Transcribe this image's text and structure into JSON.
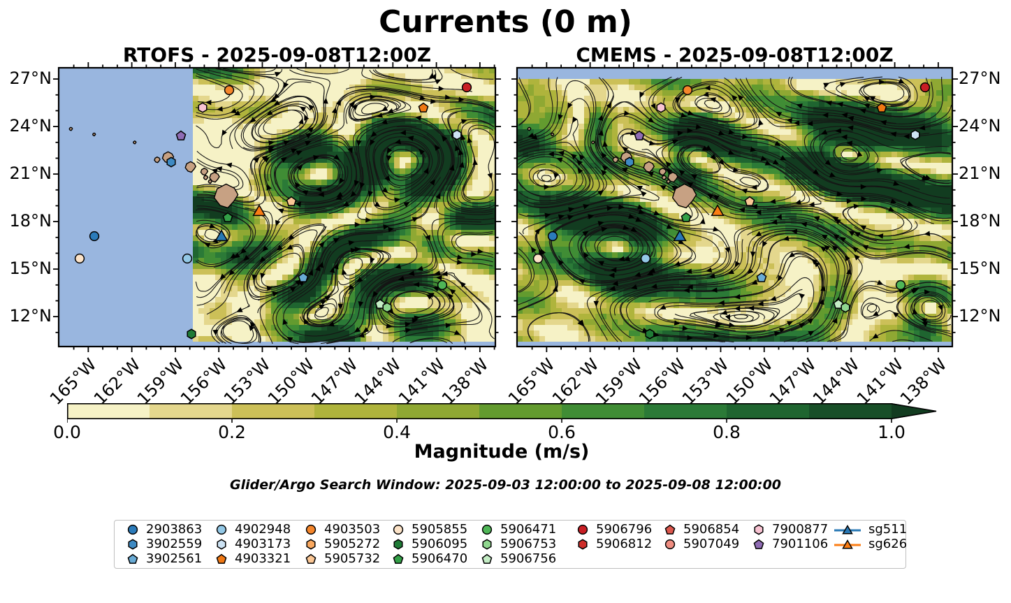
{
  "title": "Currents (0 m)",
  "panels": [
    {
      "title": "RTOFS - 2025-09-08T12:00Z"
    },
    {
      "title": "CMEMS - 2025-09-08T12:00Z"
    }
  ],
  "axes": {
    "lat_ticks": [
      "27°N",
      "24°N",
      "21°N",
      "18°N",
      "15°N",
      "12°N"
    ],
    "lon_ticks": [
      "165°W",
      "162°W",
      "159°W",
      "156°W",
      "153°W",
      "150°W",
      "147°W",
      "144°W",
      "141°W",
      "138°W"
    ]
  },
  "colorbar": {
    "label": "Magnitude (m/s)",
    "ticks": [
      "0.0",
      "0.2",
      "0.4",
      "0.6",
      "0.8",
      "1.0"
    ],
    "colors": [
      "#F6F2C6",
      "#E4D78D",
      "#CCC058",
      "#AFB43C",
      "#8FA833",
      "#639B2F",
      "#408D35",
      "#2B7A37",
      "#1F6530",
      "#184F28",
      "#123C20"
    ]
  },
  "subtitle": "Glider/Argo Search Window: 2025-09-03 12:00:00 to 2025-09-08 12:00:00",
  "ocean_color": "#99B6DF",
  "land_color": "#C7A183",
  "legend": {
    "columns": [
      [
        {
          "id": "2903863",
          "shape": "circle",
          "color": "#2B7BBA"
        },
        {
          "id": "3902559",
          "shape": "hexagon",
          "color": "#3E8AC3"
        },
        {
          "id": "3902561",
          "shape": "pentagon",
          "color": "#69ABD5"
        }
      ],
      [
        {
          "id": "4902948",
          "shape": "circle",
          "color": "#93C8E6"
        },
        {
          "id": "4903173",
          "shape": "hexagon",
          "color": "#CDE3F4"
        },
        {
          "id": "4903321",
          "shape": "pentagon",
          "color": "#F07813"
        }
      ],
      [
        {
          "id": "4903503",
          "shape": "circle",
          "color": "#F5862B"
        },
        {
          "id": "5905272",
          "shape": "hexagon",
          "color": "#F9A85F"
        },
        {
          "id": "5905732",
          "shape": "pentagon",
          "color": "#FBC795"
        }
      ],
      [
        {
          "id": "5905855",
          "shape": "circle",
          "color": "#FCE3C8"
        },
        {
          "id": "5906095",
          "shape": "hexagon",
          "color": "#1F7B36"
        },
        {
          "id": "5906470",
          "shape": "pentagon",
          "color": "#33A047"
        }
      ],
      [
        {
          "id": "5906471",
          "shape": "circle",
          "color": "#4FB657"
        },
        {
          "id": "5906753",
          "shape": "hexagon",
          "color": "#90D78F"
        },
        {
          "id": "5906756",
          "shape": "pentagon",
          "color": "#C4EDC5"
        }
      ],
      [
        {
          "id": "5906796",
          "shape": "circle",
          "color": "#C81E24"
        },
        {
          "id": "5906812",
          "shape": "hexagon",
          "color": "#CE2E2A"
        }
      ],
      [
        {
          "id": "5906854",
          "shape": "pentagon",
          "color": "#DC574D"
        },
        {
          "id": "5907049",
          "shape": "circle",
          "color": "#EF8D81"
        }
      ],
      [
        {
          "id": "7900877",
          "shape": "hexagon",
          "color": "#F8C3D2"
        },
        {
          "id": "7901106",
          "shape": "pentagon",
          "color": "#8F6CB4"
        }
      ],
      [
        {
          "id": "sg511",
          "shape": "glider",
          "color": "#2878B5"
        },
        {
          "id": "sg626",
          "shape": "glider",
          "color": "#FB7D14"
        }
      ]
    ]
  },
  "chart_data": {
    "type": "heatmap",
    "subtype": "streamplot-current-map",
    "panels": [
      "RTOFS - 2025-09-08T12:00Z",
      "CMEMS - 2025-09-08T12:00Z"
    ],
    "colorbar": {
      "label": "Magnitude (m/s)",
      "range": [
        0.0,
        1.05
      ],
      "ticks": [
        0.0,
        0.2,
        0.4,
        0.6,
        0.8,
        1.0
      ],
      "extend": "max"
    },
    "lon_ticks_deg_west": [
      165,
      162,
      159,
      156,
      153,
      150,
      147,
      144,
      141,
      138
    ],
    "lat_ticks_deg_north": [
      27,
      24,
      21,
      18,
      15,
      12
    ],
    "map_markers": [
      {
        "id": "2903863",
        "shape": "circle",
        "color": "#2B7BBA",
        "lon": -164.6,
        "lat": 17.0
      },
      {
        "id": "5905855",
        "shape": "circle",
        "color": "#FCE3C8",
        "lon": -165.6,
        "lat": 15.6
      },
      {
        "id": "4902948",
        "shape": "circle",
        "color": "#93C8E6",
        "lon": -158.2,
        "lat": 15.6
      },
      {
        "id": "5906095",
        "shape": "hexagon",
        "color": "#1F7B36",
        "lon": -157.9,
        "lat": 10.8
      },
      {
        "id": "3902559",
        "shape": "hexagon",
        "color": "#3E8AC3",
        "lon": -159.3,
        "lat": 21.65
      },
      {
        "id": "7901106",
        "shape": "pentagon",
        "color": "#8F6CB4",
        "lon": -158.6,
        "lat": 23.35
      },
      {
        "id": "7900877",
        "shape": "hexagon",
        "color": "#F8C3D2",
        "lon": -157.1,
        "lat": 25.1
      },
      {
        "id": "4903503",
        "shape": "circle",
        "color": "#F5862B",
        "lon": -155.3,
        "lat": 26.2
      },
      {
        "id": "5906470",
        "shape": "pentagon",
        "color": "#33A047",
        "lon": -155.4,
        "lat": 18.2
      },
      {
        "id": "sg511",
        "shape": "triangle",
        "color": "#2878B5",
        "lon": -155.8,
        "lat": 17.0
      },
      {
        "id": "sg626",
        "shape": "triangle",
        "color": "#FB7D14",
        "lon": -153.2,
        "lat": 18.6
      },
      {
        "id": "5905732",
        "shape": "pentagon",
        "color": "#FBC795",
        "lon": -151.0,
        "lat": 19.2
      },
      {
        "id": "3902561",
        "shape": "pentagon",
        "color": "#69ABD5",
        "lon": -150.2,
        "lat": 14.4
      },
      {
        "id": "5906756",
        "shape": "pentagon",
        "color": "#C4EDC5",
        "lon": -144.9,
        "lat": 12.7
      },
      {
        "id": "5906753",
        "shape": "hexagon",
        "color": "#90D78F",
        "lon": -144.4,
        "lat": 12.5
      },
      {
        "id": "5906471",
        "shape": "circle",
        "color": "#4FB657",
        "lon": -140.6,
        "lat": 13.9
      },
      {
        "id": "4903173",
        "shape": "hexagon",
        "color": "#CDE3F4",
        "lon": -139.6,
        "lat": 23.4
      },
      {
        "id": "4903321",
        "shape": "pentagon",
        "color": "#F07813",
        "lon": -141.9,
        "lat": 25.1
      },
      {
        "id": "5906796",
        "shape": "circle",
        "color": "#C81E24",
        "lon": -138.9,
        "lat": 26.4
      }
    ]
  }
}
